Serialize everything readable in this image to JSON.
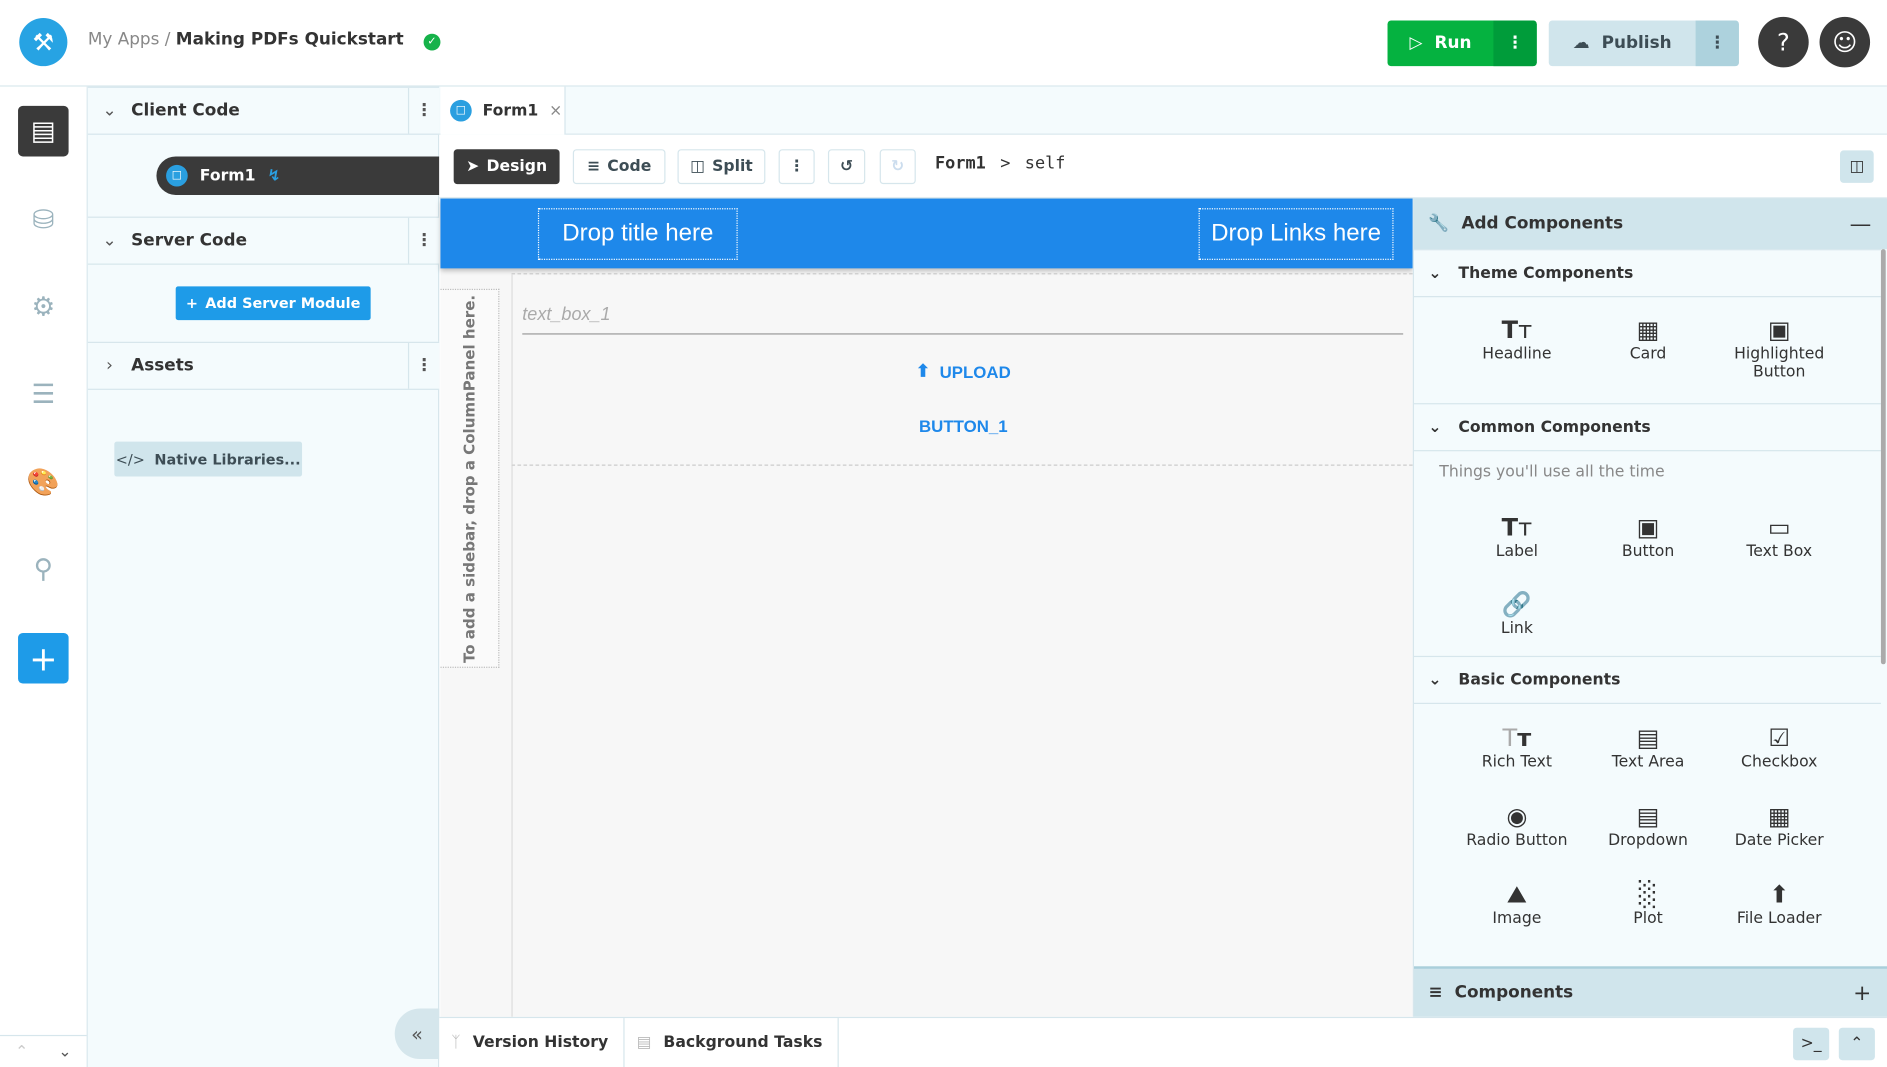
{
  "header": {
    "breadcrumb_root": "My Apps",
    "separator": "/",
    "app_name": "Making PDFs Quickstart",
    "run_label": "Run",
    "publish_label": "Publish",
    "help": "?"
  },
  "left_panel": {
    "client_code": "Client Code",
    "form_item": "Form1",
    "server_code": "Server Code",
    "add_server_module": "Add Server Module",
    "assets": "Assets",
    "native_libraries": "Native Libraries..."
  },
  "tabs": [
    {
      "label": "Form1"
    }
  ],
  "toolbar": {
    "design": "Design",
    "code": "Code",
    "split": "Split",
    "path_form": "Form1",
    "path_sep": ">",
    "path_self": "self"
  },
  "canvas": {
    "drop_title": "Drop title here",
    "drop_links": "Drop Links here",
    "sidebar_hint": "To add a sidebar, drop a ColumnPanel here.",
    "text_box_placeholder": "text_box_1",
    "upload_label": "UPLOAD",
    "button_label": "BUTTON_1",
    "accent": "#1e88ea"
  },
  "right_panel": {
    "title": "Add Components",
    "groups": [
      {
        "title": "Theme Components",
        "items": [
          {
            "label": "Headline",
            "icon": "headline-icon"
          },
          {
            "label": "Card",
            "icon": "card-icon"
          },
          {
            "label": "Highlighted Button",
            "icon": "highlighted-button-icon"
          }
        ]
      },
      {
        "title": "Common Components",
        "description": "Things you'll use all the time",
        "items": [
          {
            "label": "Label",
            "icon": "label-icon"
          },
          {
            "label": "Button",
            "icon": "button-icon"
          },
          {
            "label": "Text Box",
            "icon": "text-box-icon"
          },
          {
            "label": "Link",
            "icon": "link-icon"
          }
        ]
      },
      {
        "title": "Basic Components",
        "items": [
          {
            "label": "Rich Text",
            "icon": "rich-text-icon"
          },
          {
            "label": "Text Area",
            "icon": "text-area-icon"
          },
          {
            "label": "Checkbox",
            "icon": "checkbox-icon"
          },
          {
            "label": "Radio Button",
            "icon": "radio-button-icon"
          },
          {
            "label": "Dropdown",
            "icon": "dropdown-icon"
          },
          {
            "label": "Date Picker",
            "icon": "date-picker-icon"
          },
          {
            "label": "Image",
            "icon": "image-icon"
          },
          {
            "label": "Plot",
            "icon": "plot-icon"
          },
          {
            "label": "File Loader",
            "icon": "file-loader-icon"
          }
        ]
      }
    ],
    "components_title": "Components"
  },
  "bottom": {
    "version_history": "Version History",
    "background_tasks": "Background Tasks"
  },
  "colors": {
    "run": "#05b240",
    "publish": "#d0e5ec",
    "brand": "#27a3e3"
  }
}
